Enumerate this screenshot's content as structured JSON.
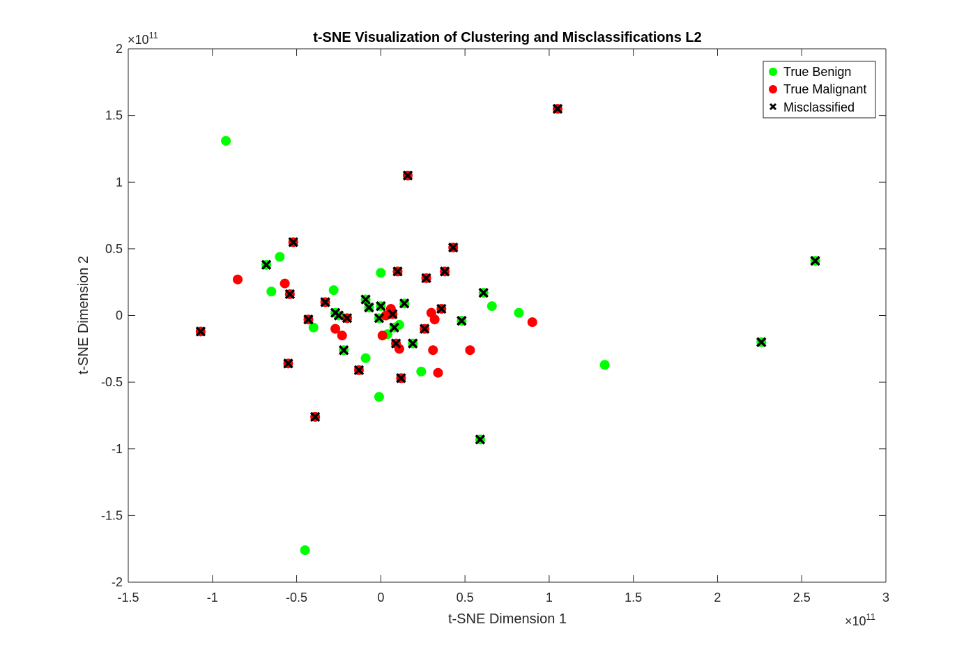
{
  "chart_data": {
    "type": "scatter",
    "title": "t-SNE Visualization of Clustering and Misclassifications L2",
    "xlabel": "t-SNE Dimension 1",
    "ylabel": "t-SNE Dimension 2",
    "xlim": [
      -1.5,
      3
    ],
    "ylim": [
      -2,
      2
    ],
    "x_exponent": "11",
    "y_exponent": "11",
    "exponent_prefix": "×10",
    "xticks": [
      -1.5,
      -1,
      -0.5,
      0,
      0.5,
      1,
      1.5,
      2,
      2.5,
      3
    ],
    "xtick_labels": [
      "-1.5",
      "-1",
      "-0.5",
      "0",
      "0.5",
      "1",
      "1.5",
      "2",
      "2.5",
      "3"
    ],
    "yticks": [
      -2,
      -1.5,
      -1,
      -0.5,
      0,
      0.5,
      1,
      1.5,
      2
    ],
    "ytick_labels": [
      "-2",
      "-1.5",
      "-1",
      "-0.5",
      "0",
      "0.5",
      "1",
      "1.5",
      "2"
    ],
    "grid": false,
    "legend_position": "top-right",
    "colors": {
      "benign": "#00ff00",
      "malignant": "#ff0000",
      "misclassified": "#000000"
    },
    "series": [
      {
        "name": "True Benign",
        "marker": "circle",
        "points": [
          [
            -0.92,
            1.31
          ],
          [
            -0.6,
            0.44
          ],
          [
            -0.65,
            0.18
          ],
          [
            -0.68,
            0.38
          ],
          [
            -0.4,
            -0.09
          ],
          [
            -0.28,
            0.19
          ],
          [
            -0.27,
            0.02
          ],
          [
            -0.25,
            0.0
          ],
          [
            -0.22,
            -0.26
          ],
          [
            -0.09,
            0.12
          ],
          [
            -0.09,
            -0.32
          ],
          [
            -0.07,
            0.06
          ],
          [
            0.0,
            0.32
          ],
          [
            0.0,
            0.07
          ],
          [
            -0.01,
            -0.02
          ],
          [
            -0.01,
            -0.61
          ],
          [
            0.04,
            -0.14
          ],
          [
            0.08,
            -0.09
          ],
          [
            0.11,
            -0.07
          ],
          [
            0.14,
            0.09
          ],
          [
            0.19,
            -0.21
          ],
          [
            0.24,
            -0.42
          ],
          [
            0.48,
            -0.04
          ],
          [
            0.61,
            0.17
          ],
          [
            0.66,
            0.07
          ],
          [
            0.82,
            0.02
          ],
          [
            1.33,
            -0.37
          ],
          [
            0.59,
            -0.93
          ],
          [
            2.26,
            -0.2
          ],
          [
            2.58,
            0.41
          ],
          [
            -0.45,
            -1.76
          ]
        ]
      },
      {
        "name": "True Malignant",
        "marker": "circle",
        "points": [
          [
            -0.85,
            0.27
          ],
          [
            -1.07,
            -0.12
          ],
          [
            -0.57,
            0.24
          ],
          [
            -0.54,
            0.16
          ],
          [
            -0.52,
            0.55
          ],
          [
            -0.55,
            -0.36
          ],
          [
            -0.43,
            -0.03
          ],
          [
            -0.39,
            -0.76
          ],
          [
            -0.33,
            0.1
          ],
          [
            -0.27,
            -0.1
          ],
          [
            -0.23,
            -0.15
          ],
          [
            -0.2,
            -0.02
          ],
          [
            -0.13,
            -0.41
          ],
          [
            0.01,
            -0.15
          ],
          [
            0.03,
            0.0
          ],
          [
            0.06,
            0.05
          ],
          [
            0.07,
            0.01
          ],
          [
            0.09,
            -0.21
          ],
          [
            0.1,
            0.33
          ],
          [
            0.11,
            -0.25
          ],
          [
            0.12,
            -0.47
          ],
          [
            0.26,
            -0.1
          ],
          [
            0.27,
            0.28
          ],
          [
            0.3,
            0.02
          ],
          [
            0.31,
            -0.26
          ],
          [
            0.32,
            -0.03
          ],
          [
            0.34,
            -0.43
          ],
          [
            0.36,
            0.05
          ],
          [
            0.38,
            0.33
          ],
          [
            0.43,
            0.51
          ],
          [
            0.53,
            -0.26
          ],
          [
            0.9,
            -0.05
          ],
          [
            1.05,
            1.55
          ],
          [
            0.16,
            1.05
          ]
        ]
      },
      {
        "name": "Misclassified",
        "marker": "x",
        "points": [
          [
            -0.68,
            0.38
          ],
          [
            -1.07,
            -0.12
          ],
          [
            -0.54,
            0.16
          ],
          [
            -0.52,
            0.55
          ],
          [
            -0.55,
            -0.36
          ],
          [
            -0.43,
            -0.03
          ],
          [
            -0.39,
            -0.76
          ],
          [
            -0.33,
            0.1
          ],
          [
            -0.27,
            0.02
          ],
          [
            -0.25,
            0.0
          ],
          [
            -0.2,
            -0.02
          ],
          [
            -0.22,
            -0.26
          ],
          [
            -0.13,
            -0.41
          ],
          [
            -0.09,
            0.12
          ],
          [
            -0.07,
            0.06
          ],
          [
            0.0,
            0.07
          ],
          [
            -0.01,
            -0.02
          ],
          [
            0.07,
            0.01
          ],
          [
            0.08,
            -0.09
          ],
          [
            0.09,
            -0.21
          ],
          [
            0.1,
            0.33
          ],
          [
            0.12,
            -0.47
          ],
          [
            0.14,
            0.09
          ],
          [
            0.19,
            -0.21
          ],
          [
            0.26,
            -0.1
          ],
          [
            0.27,
            0.28
          ],
          [
            0.36,
            0.05
          ],
          [
            0.38,
            0.33
          ],
          [
            0.43,
            0.51
          ],
          [
            0.48,
            -0.04
          ],
          [
            0.61,
            0.17
          ],
          [
            0.59,
            -0.93
          ],
          [
            1.05,
            1.55
          ],
          [
            0.16,
            1.05
          ],
          [
            2.26,
            -0.2
          ],
          [
            2.58,
            0.41
          ]
        ]
      }
    ]
  }
}
